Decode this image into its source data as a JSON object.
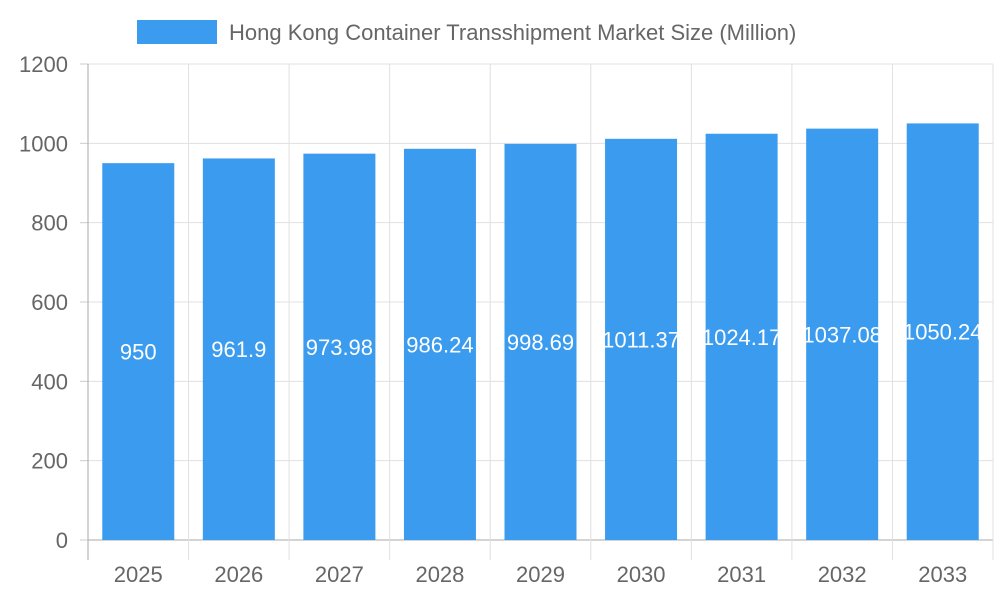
{
  "chart_data": {
    "type": "bar",
    "title": "",
    "legend": {
      "label": "Hong Kong Container Transshipment Market Size (Million)",
      "placement": "top"
    },
    "categories": [
      "2025",
      "2026",
      "2027",
      "2028",
      "2029",
      "2030",
      "2031",
      "2032",
      "2033"
    ],
    "series": [
      {
        "name": "Hong Kong Container Transshipment Market Size (Million)",
        "values": [
          950,
          961.9,
          973.98,
          986.24,
          998.69,
          1011.37,
          1024.17,
          1037.08,
          1050.24
        ]
      }
    ],
    "data_labels": [
      "950",
      "961.9",
      "973.98",
      "986.24",
      "998.69",
      "1011.37",
      "1024.17",
      "1037.08",
      "1050.24"
    ],
    "yticks": [
      "0",
      "200",
      "400",
      "600",
      "800",
      "1000",
      "1200"
    ],
    "ylim": [
      0,
      1200
    ],
    "grid": true,
    "colors": {
      "bar": "#3a9bef",
      "grid": "#e0e0e0",
      "axis": "#aaaaaa",
      "text": "#666666"
    }
  }
}
